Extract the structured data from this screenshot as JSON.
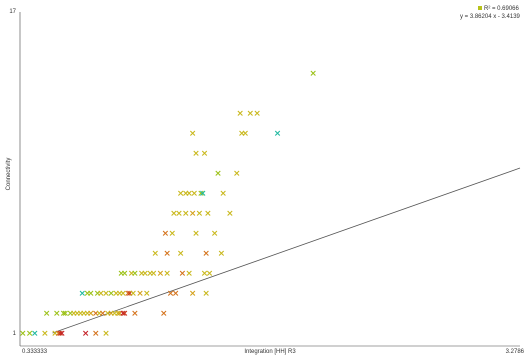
{
  "chart_data": {
    "type": "scatter",
    "xlabel": "Integration [HH] R3",
    "ylabel": "Connectivity",
    "xlim": [
      0.333333,
      3.2786
    ],
    "ylim": [
      1,
      17
    ],
    "x_tick_labels": [
      "0.333333",
      "3.2786"
    ],
    "y_tick_labels": [
      "1",
      "17"
    ],
    "legend": {
      "position": "top-right",
      "r2_text": "R² = 0.69066",
      "equation_text": "y = 3.86204 x - 3.4139",
      "marker_color": "#b7c21a"
    },
    "trendline": {
      "slope": 3.86204,
      "intercept": -3.4139,
      "color": "#555555"
    },
    "marker_glyph": "×",
    "points": [
      {
        "x": 0.35,
        "y": 1,
        "color": "#9cc219"
      },
      {
        "x": 0.39,
        "y": 1,
        "color": "#9cc219"
      },
      {
        "x": 0.42,
        "y": 1,
        "color": "#1fb9a0"
      },
      {
        "x": 0.48,
        "y": 1,
        "color": "#c9b81c"
      },
      {
        "x": 0.54,
        "y": 1,
        "color": "#c9b81c"
      },
      {
        "x": 0.56,
        "y": 1,
        "color": "#d4731c"
      },
      {
        "x": 0.57,
        "y": 1,
        "color": "#cc3a1a"
      },
      {
        "x": 0.58,
        "y": 1,
        "color": "#c41e24"
      },
      {
        "x": 0.72,
        "y": 1,
        "color": "#c41e24"
      },
      {
        "x": 0.78,
        "y": 1,
        "color": "#d4731c"
      },
      {
        "x": 0.84,
        "y": 1,
        "color": "#c9b81c"
      },
      {
        "x": 0.49,
        "y": 2,
        "color": "#9cc219"
      },
      {
        "x": 0.55,
        "y": 2,
        "color": "#9cc219"
      },
      {
        "x": 0.59,
        "y": 2,
        "color": "#9cc219"
      },
      {
        "x": 0.6,
        "y": 2,
        "color": "#9cc219"
      },
      {
        "x": 0.63,
        "y": 2,
        "color": "#9cc219"
      },
      {
        "x": 0.65,
        "y": 2,
        "color": "#c9b81c"
      },
      {
        "x": 0.67,
        "y": 2,
        "color": "#c9b81c"
      },
      {
        "x": 0.69,
        "y": 2,
        "color": "#c9b81c"
      },
      {
        "x": 0.71,
        "y": 2,
        "color": "#c9b81c"
      },
      {
        "x": 0.73,
        "y": 2,
        "color": "#c9b81c"
      },
      {
        "x": 0.75,
        "y": 2,
        "color": "#d4a11c"
      },
      {
        "x": 0.78,
        "y": 2,
        "color": "#d4731c"
      },
      {
        "x": 0.8,
        "y": 2,
        "color": "#c9b81c"
      },
      {
        "x": 0.82,
        "y": 2,
        "color": "#d4731c"
      },
      {
        "x": 0.85,
        "y": 2,
        "color": "#c9b81c"
      },
      {
        "x": 0.87,
        "y": 2,
        "color": "#d4a11c"
      },
      {
        "x": 0.89,
        "y": 2,
        "color": "#c9b81c"
      },
      {
        "x": 0.91,
        "y": 2,
        "color": "#c9b81c"
      },
      {
        "x": 0.92,
        "y": 2,
        "color": "#d4a11c"
      },
      {
        "x": 0.94,
        "y": 2,
        "color": "#c41e24"
      },
      {
        "x": 0.95,
        "y": 2,
        "color": "#cc3a1a"
      },
      {
        "x": 1.01,
        "y": 2,
        "color": "#d4731c"
      },
      {
        "x": 1.18,
        "y": 2,
        "color": "#d4731c"
      },
      {
        "x": 0.7,
        "y": 3,
        "color": "#1fb9a0"
      },
      {
        "x": 0.73,
        "y": 3,
        "color": "#9cc219"
      },
      {
        "x": 0.75,
        "y": 3,
        "color": "#9cc219"
      },
      {
        "x": 0.79,
        "y": 3,
        "color": "#9cc219"
      },
      {
        "x": 0.81,
        "y": 3,
        "color": "#c9b81c"
      },
      {
        "x": 0.84,
        "y": 3,
        "color": "#c9b81c"
      },
      {
        "x": 0.87,
        "y": 3,
        "color": "#9cc219"
      },
      {
        "x": 0.9,
        "y": 3,
        "color": "#c9b81c"
      },
      {
        "x": 0.92,
        "y": 3,
        "color": "#c9b81c"
      },
      {
        "x": 0.94,
        "y": 3,
        "color": "#c9b81c"
      },
      {
        "x": 0.97,
        "y": 3,
        "color": "#d4731c"
      },
      {
        "x": 0.98,
        "y": 3,
        "color": "#cc3a1a"
      },
      {
        "x": 1.0,
        "y": 3,
        "color": "#c9b81c"
      },
      {
        "x": 1.04,
        "y": 3,
        "color": "#d4a11c"
      },
      {
        "x": 1.08,
        "y": 3,
        "color": "#c9b81c"
      },
      {
        "x": 1.22,
        "y": 3,
        "color": "#d4731c"
      },
      {
        "x": 1.25,
        "y": 3,
        "color": "#d4731c"
      },
      {
        "x": 1.35,
        "y": 3,
        "color": "#d4a11c"
      },
      {
        "x": 1.43,
        "y": 3,
        "color": "#c9b81c"
      },
      {
        "x": 0.93,
        "y": 4,
        "color": "#9cc219"
      },
      {
        "x": 0.95,
        "y": 4,
        "color": "#9cc219"
      },
      {
        "x": 0.99,
        "y": 4,
        "color": "#c9b81c"
      },
      {
        "x": 1.01,
        "y": 4,
        "color": "#9cc219"
      },
      {
        "x": 1.05,
        "y": 4,
        "color": "#c9b81c"
      },
      {
        "x": 1.07,
        "y": 4,
        "color": "#c9b81c"
      },
      {
        "x": 1.1,
        "y": 4,
        "color": "#c9b81c"
      },
      {
        "x": 1.12,
        "y": 4,
        "color": "#c9b81c"
      },
      {
        "x": 1.16,
        "y": 4,
        "color": "#d4a11c"
      },
      {
        "x": 1.2,
        "y": 4,
        "color": "#c9b81c"
      },
      {
        "x": 1.29,
        "y": 4,
        "color": "#d4731c"
      },
      {
        "x": 1.33,
        "y": 4,
        "color": "#c9b81c"
      },
      {
        "x": 1.42,
        "y": 4,
        "color": "#c9b81c"
      },
      {
        "x": 1.45,
        "y": 4,
        "color": "#c9b81c"
      },
      {
        "x": 1.13,
        "y": 5,
        "color": "#c9b81c"
      },
      {
        "x": 1.2,
        "y": 5,
        "color": "#d4731c"
      },
      {
        "x": 1.28,
        "y": 5,
        "color": "#c9b81c"
      },
      {
        "x": 1.43,
        "y": 5,
        "color": "#d4731c"
      },
      {
        "x": 1.52,
        "y": 5,
        "color": "#c9b81c"
      },
      {
        "x": 1.19,
        "y": 6,
        "color": "#d4731c"
      },
      {
        "x": 1.23,
        "y": 6,
        "color": "#c9b81c"
      },
      {
        "x": 1.37,
        "y": 6,
        "color": "#c9b81c"
      },
      {
        "x": 1.48,
        "y": 6,
        "color": "#c9b81c"
      },
      {
        "x": 1.24,
        "y": 7,
        "color": "#c9b81c"
      },
      {
        "x": 1.27,
        "y": 7,
        "color": "#c9b81c"
      },
      {
        "x": 1.31,
        "y": 7,
        "color": "#c9b81c"
      },
      {
        "x": 1.35,
        "y": 7,
        "color": "#d4a11c"
      },
      {
        "x": 1.39,
        "y": 7,
        "color": "#c9b81c"
      },
      {
        "x": 1.44,
        "y": 7,
        "color": "#c9b81c"
      },
      {
        "x": 1.57,
        "y": 7,
        "color": "#c9b81c"
      },
      {
        "x": 1.28,
        "y": 8,
        "color": "#c9b81c"
      },
      {
        "x": 1.31,
        "y": 8,
        "color": "#c9b81c"
      },
      {
        "x": 1.33,
        "y": 8,
        "color": "#c9b81c"
      },
      {
        "x": 1.36,
        "y": 8,
        "color": "#c9b81c"
      },
      {
        "x": 1.4,
        "y": 8,
        "color": "#9cc219"
      },
      {
        "x": 1.41,
        "y": 8,
        "color": "#1fb9a0"
      },
      {
        "x": 1.53,
        "y": 8,
        "color": "#c9b81c"
      },
      {
        "x": 1.5,
        "y": 9,
        "color": "#9cc219"
      },
      {
        "x": 1.61,
        "y": 9,
        "color": "#c9b81c"
      },
      {
        "x": 1.37,
        "y": 10,
        "color": "#c9b81c"
      },
      {
        "x": 1.42,
        "y": 10,
        "color": "#c9b81c"
      },
      {
        "x": 1.66,
        "y": 11,
        "color": "#c9b81c"
      },
      {
        "x": 1.35,
        "y": 11,
        "color": "#c9b81c"
      },
      {
        "x": 1.63,
        "y": 12,
        "color": "#c9b81c"
      },
      {
        "x": 1.64,
        "y": 11,
        "color": "#c9b81c"
      },
      {
        "x": 1.69,
        "y": 12,
        "color": "#c9b81c"
      },
      {
        "x": 1.73,
        "y": 12,
        "color": "#c9b81c"
      },
      {
        "x": 1.85,
        "y": 11,
        "color": "#1fb9a0"
      },
      {
        "x": 2.06,
        "y": 14,
        "color": "#9cc219"
      }
    ]
  }
}
